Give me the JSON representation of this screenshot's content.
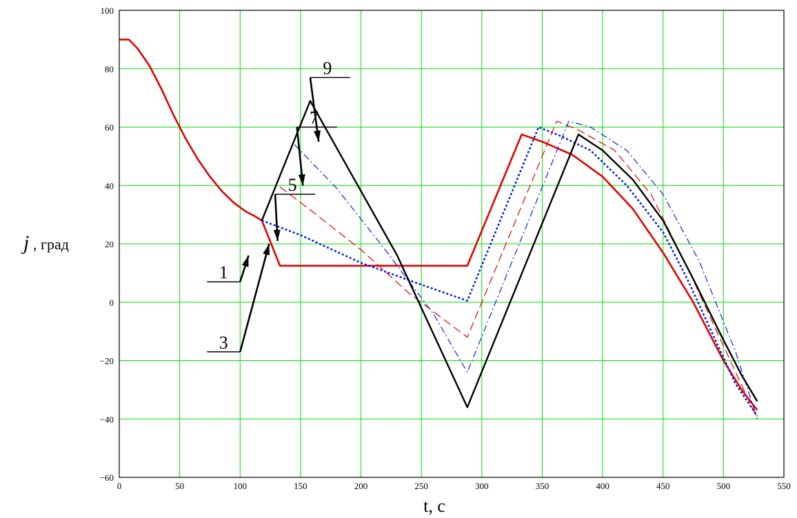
{
  "chart_data": {
    "type": "line",
    "xlabel": "t, c",
    "ylabel_symbol": "j",
    "ylabel_unit": ", град",
    "xlim": [
      0,
      550
    ],
    "ylim": [
      -60,
      100
    ],
    "xticks": [
      0,
      50,
      100,
      150,
      200,
      250,
      300,
      350,
      400,
      450,
      500,
      550
    ],
    "yticks": [
      -60,
      -40,
      -20,
      0,
      20,
      40,
      60,
      80,
      100
    ],
    "grid": true,
    "colors": {
      "grid": "#00e000",
      "frame": "#000000"
    },
    "series": [
      {
        "name": "1",
        "color": "#e00000",
        "dash": "",
        "width": 2.6,
        "x": [
          0,
          8,
          15,
          25,
          35,
          45,
          55,
          65,
          75,
          85,
          95,
          105,
          112,
          118,
          133,
          160,
          200,
          250,
          288,
          333,
          350,
          375,
          400,
          425,
          450,
          475,
          500,
          515,
          528
        ],
        "y": [
          90,
          90,
          87,
          81,
          73,
          64,
          56,
          49,
          43,
          38,
          34,
          31,
          29.5,
          28,
          12.5,
          12.5,
          12.5,
          12.5,
          12.5,
          57.5,
          55,
          50.5,
          43,
          32,
          17,
          0,
          -20,
          -30,
          -37
        ]
      },
      {
        "name": "3",
        "color": "#0020e0",
        "dash": "3,3",
        "width": 2.6,
        "x": [
          118,
          150,
          200,
          250,
          288,
          347,
          365,
          390,
          420,
          450,
          470,
          490,
          510,
          528
        ],
        "y": [
          28,
          23,
          13.5,
          6,
          0.5,
          60,
          57,
          52,
          40,
          24,
          8,
          -10,
          -28,
          -39
        ]
      },
      {
        "name": "5",
        "color": "#e00000",
        "dash": "12,6",
        "width": 1.2,
        "x": [
          133,
          160,
          200,
          240,
          288,
          362,
          380,
          410,
          440,
          470,
          500,
          528
        ],
        "y": [
          39.5,
          31,
          18,
          3,
          -12,
          62,
          59,
          52,
          37,
          12,
          -15,
          -40
        ]
      },
      {
        "name": "7",
        "color": "#0020e0",
        "dash": "10,4,2,4",
        "width": 1.2,
        "x": [
          145,
          180,
          220,
          260,
          288,
          372,
          390,
          420,
          450,
          480,
          510,
          528
        ],
        "y": [
          54,
          39,
          18,
          -4,
          -24,
          62,
          60,
          52,
          37,
          14,
          -17,
          -40
        ]
      },
      {
        "name": "9",
        "color": "#000000",
        "dash": "",
        "width": 2.4,
        "x": [
          118,
          158,
          230,
          288,
          380,
          400,
          425,
          450,
          475,
          500,
          515,
          528
        ],
        "y": [
          28,
          69,
          16,
          -36,
          57.5,
          52,
          42,
          28,
          8,
          -13,
          -25,
          -34
        ]
      }
    ],
    "annotations": [
      {
        "text": "9",
        "x": 165,
        "y": 55,
        "text_x": 158,
        "text_y": 77
      },
      {
        "text": "7",
        "x": 152,
        "y": 40,
        "text_x": 147,
        "text_y": 60
      },
      {
        "text": "5",
        "x": 131,
        "y": 21,
        "text_x": 129,
        "text_y": 37
      },
      {
        "text": "1",
        "x": 107,
        "y": 16,
        "text_x": 100,
        "text_y": 7
      },
      {
        "text": "3",
        "x": 124,
        "y": 20,
        "text_x": 100,
        "text_y": -17
      }
    ]
  }
}
